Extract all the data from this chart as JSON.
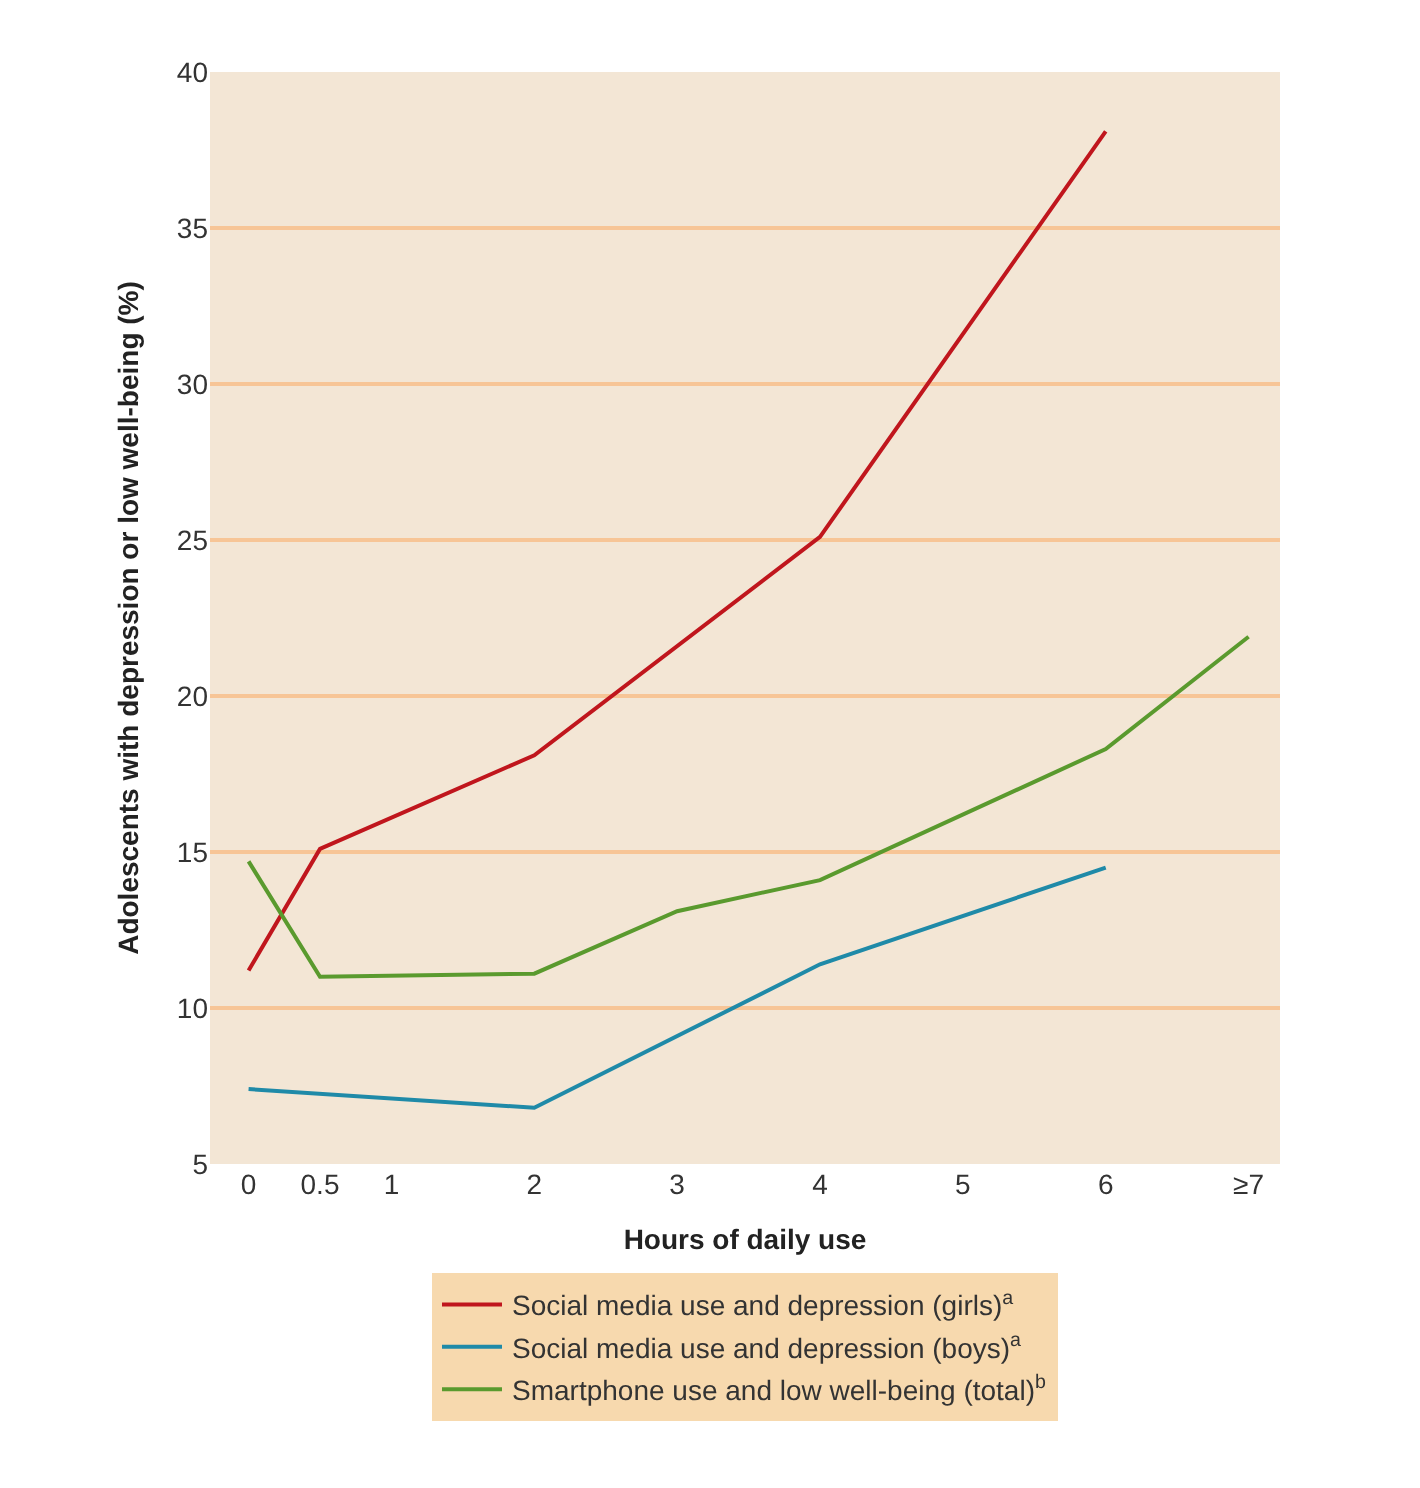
{
  "chart_data": {
    "type": "line",
    "xlabel": "Hours of daily use",
    "ylabel": "Adolescents with depression or low well-being (%)",
    "xlim": [
      -0.27,
      7.22
    ],
    "ylim": [
      5,
      40
    ],
    "xticks": [
      0,
      0.5,
      1,
      2,
      3,
      4,
      5,
      6,
      {
        "value": 7,
        "label": "≥7"
      }
    ],
    "yticks": [
      5,
      10,
      15,
      20,
      25,
      30,
      35,
      40
    ],
    "grid": "y",
    "legend": "bottom",
    "marker": "none",
    "line_style": "solid",
    "series": [
      {
        "name": "Social media use and depression (girls)$^{a}$",
        "color": "#c0161d",
        "x": [
          0,
          0.5,
          2,
          4,
          6
        ],
        "values": [
          11.2,
          15.1,
          18.1,
          25.1,
          38.1
        ]
      },
      {
        "name": "Social media use and depression (boys)$^{a}$",
        "color": "#1f8aa8",
        "x": [
          0,
          2,
          4,
          6
        ],
        "values": [
          7.4,
          6.8,
          11.4,
          14.5
        ]
      },
      {
        "name": "Smartphone use and low well-being (total)$^{b}$",
        "color": "#5a9a2e",
        "x": [
          0,
          0.5,
          2,
          3,
          4,
          6,
          7
        ],
        "values": [
          14.7,
          11.0,
          11.1,
          13.1,
          14.1,
          18.3,
          21.9
        ]
      }
    ]
  }
}
